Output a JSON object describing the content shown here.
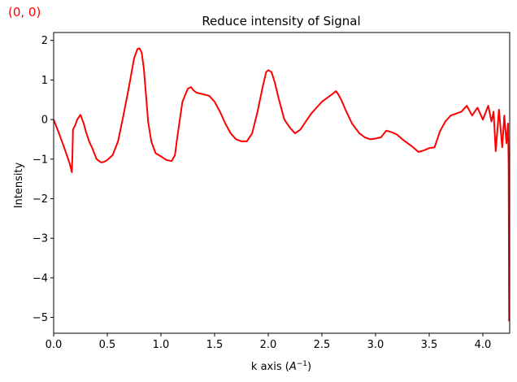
{
  "corner_label": "(0, 0)",
  "chart_data": {
    "type": "line",
    "title": "Reduce intensity of  Signal",
    "xlabel_main": "k axis (",
    "xlabel_base": "A",
    "xlabel_sup": "−1",
    "xlabel_close": ")",
    "ylabel": "Intensity",
    "xlim": [
      0.0,
      4.25
    ],
    "ylim": [
      -5.4,
      2.2
    ],
    "xticks": [
      0.0,
      0.5,
      1.0,
      1.5,
      2.0,
      2.5,
      3.0,
      3.5,
      4.0
    ],
    "xtick_labels": [
      "0.0",
      "0.5",
      "1.0",
      "1.5",
      "2.0",
      "2.5",
      "3.0",
      "3.5",
      "4.0"
    ],
    "yticks": [
      2,
      1,
      0,
      -1,
      -2,
      -3,
      -4,
      -5
    ],
    "ytick_labels": [
      "2",
      "1",
      "0",
      "−1",
      "−2",
      "−3",
      "−4",
      "−5"
    ],
    "grid": false,
    "series": [
      {
        "color": "#ff0000",
        "x": [
          0.0,
          0.05,
          0.1,
          0.15,
          0.17,
          0.175,
          0.18,
          0.2,
          0.22,
          0.25,
          0.28,
          0.3,
          0.33,
          0.36,
          0.4,
          0.44,
          0.47,
          0.5,
          0.55,
          0.6,
          0.65,
          0.7,
          0.75,
          0.78,
          0.8,
          0.82,
          0.84,
          0.86,
          0.88,
          0.91,
          0.95,
          1.0,
          1.05,
          1.1,
          1.13,
          1.16,
          1.2,
          1.25,
          1.28,
          1.3,
          1.33,
          1.38,
          1.45,
          1.5,
          1.55,
          1.6,
          1.65,
          1.7,
          1.75,
          1.8,
          1.85,
          1.9,
          1.95,
          1.98,
          2.0,
          2.03,
          2.06,
          2.1,
          2.15,
          2.2,
          2.25,
          2.3,
          2.35,
          2.4,
          2.45,
          2.5,
          2.55,
          2.6,
          2.63,
          2.65,
          2.68,
          2.72,
          2.78,
          2.85,
          2.9,
          2.95,
          3.0,
          3.05,
          3.1,
          3.15,
          3.2,
          3.25,
          3.3,
          3.35,
          3.4,
          3.45,
          3.5,
          3.55,
          3.6,
          3.65,
          3.7,
          3.75,
          3.8,
          3.85,
          3.9,
          3.95,
          4.0,
          4.05,
          4.08,
          4.1,
          4.12,
          4.15,
          4.18,
          4.2,
          4.22,
          4.235,
          4.24,
          4.245
        ],
        "y": [
          0.0,
          -0.35,
          -0.72,
          -1.12,
          -1.33,
          -0.9,
          -0.25,
          -0.15,
          0.0,
          0.12,
          -0.1,
          -0.3,
          -0.55,
          -0.72,
          -1.0,
          -1.08,
          -1.07,
          -1.02,
          -0.9,
          -0.55,
          0.1,
          0.8,
          1.55,
          1.78,
          1.8,
          1.7,
          1.3,
          0.65,
          -0.05,
          -0.55,
          -0.85,
          -0.93,
          -1.02,
          -1.05,
          -0.9,
          -0.3,
          0.45,
          0.78,
          0.82,
          0.75,
          0.68,
          0.65,
          0.6,
          0.45,
          0.2,
          -0.1,
          -0.35,
          -0.5,
          -0.55,
          -0.55,
          -0.35,
          0.2,
          0.85,
          1.2,
          1.25,
          1.2,
          0.95,
          0.5,
          0.0,
          -0.2,
          -0.35,
          -0.25,
          -0.05,
          0.15,
          0.3,
          0.45,
          0.55,
          0.65,
          0.72,
          0.65,
          0.5,
          0.25,
          -0.1,
          -0.35,
          -0.45,
          -0.5,
          -0.48,
          -0.45,
          -0.28,
          -0.32,
          -0.38,
          -0.5,
          -0.6,
          -0.7,
          -0.82,
          -0.78,
          -0.72,
          -0.7,
          -0.3,
          -0.05,
          0.1,
          0.15,
          0.2,
          0.35,
          0.1,
          0.3,
          0.0,
          0.35,
          -0.05,
          0.2,
          -0.8,
          0.25,
          -0.7,
          0.1,
          -0.6,
          -0.1,
          -1.2,
          -5.1
        ]
      }
    ]
  }
}
